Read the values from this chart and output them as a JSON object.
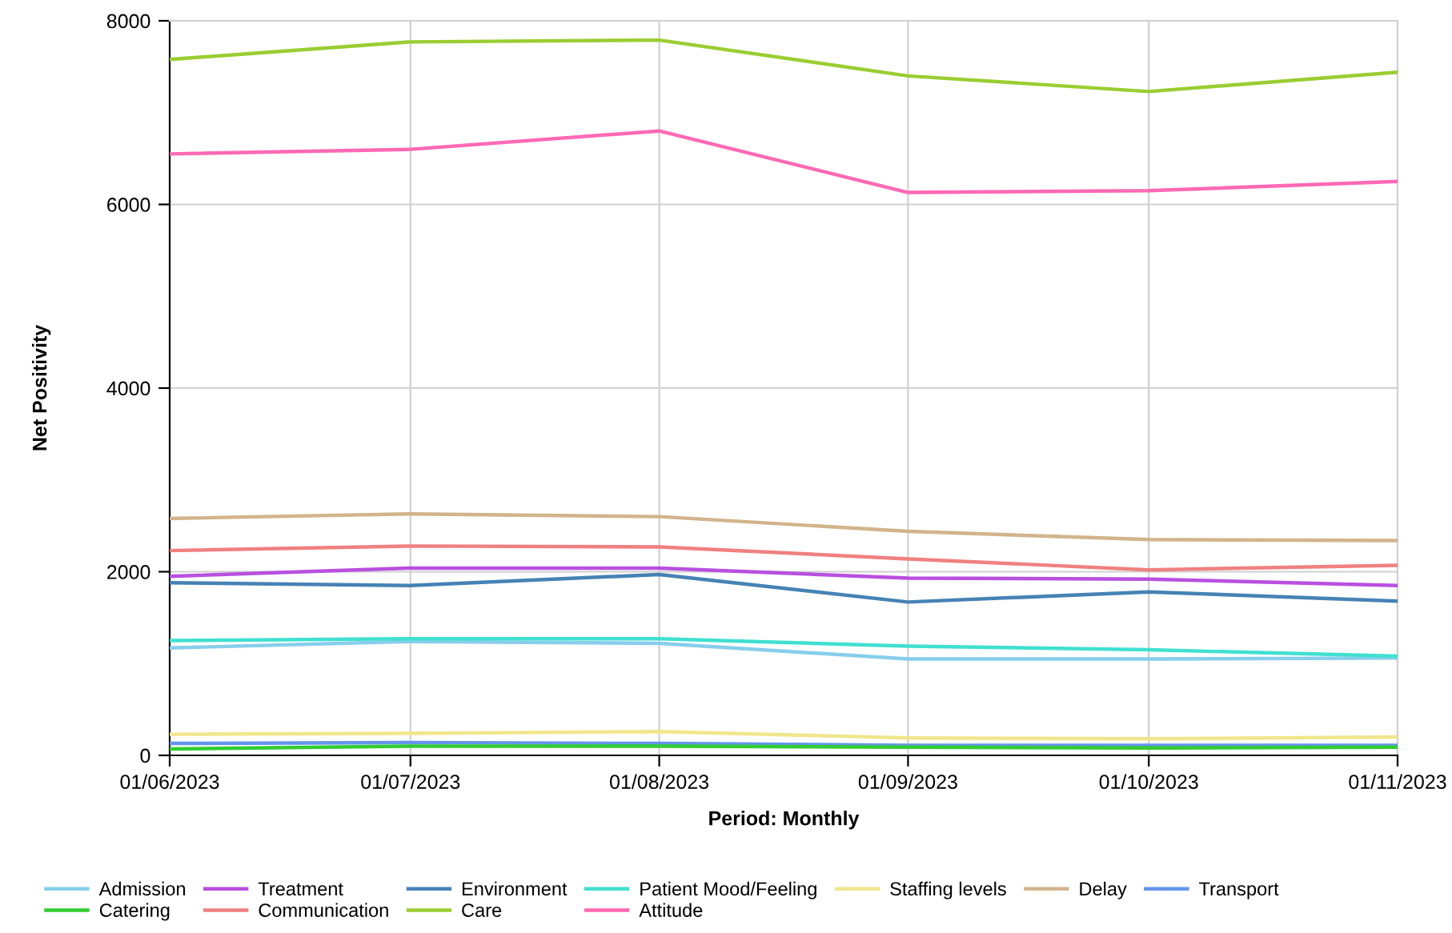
{
  "chart_data": {
    "type": "line",
    "xlabel": "Period: Monthly",
    "ylabel": "Net Positivity",
    "x": [
      "2023-06-01",
      "2023-07-01",
      "2023-08-01",
      "2023-09-01",
      "2023-10-01",
      "2023-11-01"
    ],
    "xlim": [
      "2023-06-01",
      "2023-11-01"
    ],
    "xticks": [
      {
        "value": "2023-06-01",
        "label": "01/06/2023"
      },
      {
        "value": "2023-07-01",
        "label": "01/07/2023"
      },
      {
        "value": "2023-08-01",
        "label": "01/08/2023"
      },
      {
        "value": "2023-09-01",
        "label": "01/09/2023"
      },
      {
        "value": "2023-10-01",
        "label": "01/10/2023"
      },
      {
        "value": "2023-11-01",
        "label": "01/11/2023"
      }
    ],
    "ylim": [
      0,
      8000
    ],
    "yticks": [
      0,
      2000,
      4000,
      6000,
      8000
    ],
    "grid": true,
    "legend": "bottom",
    "marker": "none",
    "line_style": "solid",
    "series": [
      {
        "name": "Admission",
        "color": "#87ceeb",
        "values": [
          1170,
          1240,
          1220,
          1050,
          1050,
          1060
        ]
      },
      {
        "name": "Treatment",
        "color": "#b94fe0",
        "values": [
          1950,
          2040,
          2040,
          1930,
          1920,
          1850
        ]
      },
      {
        "name": "Environment",
        "color": "#4682b4",
        "values": [
          1880,
          1850,
          1970,
          1670,
          1780,
          1680
        ]
      },
      {
        "name": "Patient Mood/Feeling",
        "color": "#40e0d0",
        "values": [
          1250,
          1270,
          1270,
          1190,
          1150,
          1080
        ]
      },
      {
        "name": "Staffing levels",
        "color": "#f0e68c",
        "values": [
          230,
          240,
          260,
          190,
          180,
          200
        ]
      },
      {
        "name": "Delay",
        "color": "#d2b48c",
        "values": [
          2580,
          2630,
          2600,
          2440,
          2350,
          2340
        ]
      },
      {
        "name": "Transport",
        "color": "#6495ed",
        "values": [
          130,
          140,
          130,
          110,
          110,
          110
        ]
      },
      {
        "name": "Catering",
        "color": "#32cd32",
        "values": [
          70,
          100,
          100,
          90,
          80,
          90
        ]
      },
      {
        "name": "Communication",
        "color": "#f08080",
        "values": [
          2230,
          2280,
          2270,
          2140,
          2020,
          2070
        ]
      },
      {
        "name": "Care",
        "color": "#9acd32",
        "values": [
          7580,
          7770,
          7790,
          7400,
          7230,
          7440
        ]
      },
      {
        "name": "Attitude",
        "color": "#ff69b4",
        "values": [
          6550,
          6600,
          6800,
          6130,
          6150,
          6250
        ]
      }
    ]
  }
}
